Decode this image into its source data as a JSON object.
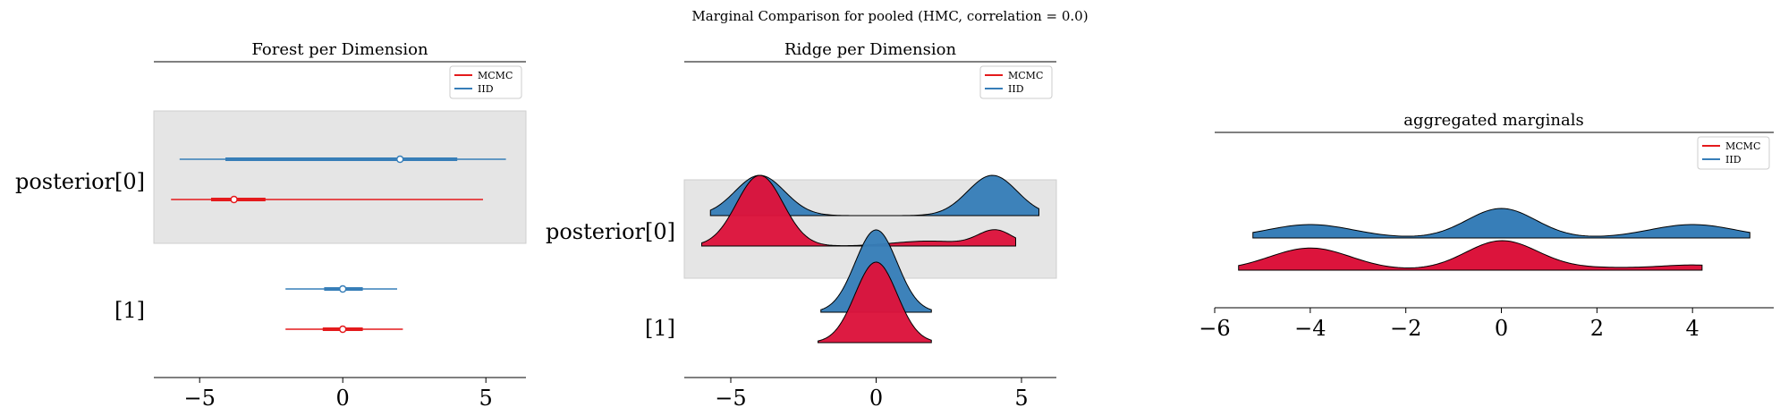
{
  "figure": {
    "suptitle": "Marginal Comparison for pooled (HMC, correlation = 0.0)"
  },
  "colors": {
    "mcmc": "#e41a1c",
    "iid": "#377eb8",
    "highlight": "#e5e5e5"
  },
  "legend": {
    "position": "top-right",
    "entries": [
      "MCMC",
      "IID"
    ]
  },
  "chart_data": [
    {
      "type": "forest",
      "title": "Forest per Dimension",
      "xticks": [
        -5,
        0,
        5
      ],
      "xlim": [
        -6.6,
        6.4
      ],
      "variables": [
        "posterior[0]",
        "[1]"
      ],
      "highlighted_variable": "posterior[0]",
      "series": [
        {
          "name": "IID",
          "color": "#377eb8",
          "intervals": [
            {
              "variable": "posterior[0]",
              "hdi_low": -5.7,
              "hdi_high": 5.7,
              "q_low": -4.1,
              "q_high": 4.0,
              "median": 2.0
            },
            {
              "variable": "[1]",
              "hdi_low": -2.0,
              "hdi_high": 1.9,
              "q_low": -0.65,
              "q_high": 0.7,
              "median": 0.0
            }
          ]
        },
        {
          "name": "MCMC",
          "color": "#e41a1c",
          "intervals": [
            {
              "variable": "posterior[0]",
              "hdi_low": -6.0,
              "hdi_high": 4.9,
              "q_low": -4.6,
              "q_high": -2.7,
              "median": -3.8
            },
            {
              "variable": "[1]",
              "hdi_low": -2.0,
              "hdi_high": 2.1,
              "q_low": -0.7,
              "q_high": 0.7,
              "median": 0.0
            }
          ]
        }
      ]
    },
    {
      "type": "ridge",
      "title": "Ridge per Dimension",
      "xticks": [
        -5,
        0,
        5
      ],
      "xlim": [
        -6.6,
        6.2
      ],
      "variables": [
        "posterior[0]",
        "[1]"
      ],
      "highlighted_variable": "posterior[0]",
      "series": [
        {
          "name": "IID",
          "color": "#377eb8",
          "ridges": [
            {
              "variable": "posterior[0]",
              "x_range": [
                -5.7,
                5.6
              ],
              "components": [
                {
                  "mu": -4.0,
                  "sigma": 0.85,
                  "w": 1.0
                },
                {
                  "mu": 4.0,
                  "sigma": 0.85,
                  "w": 1.0
                }
              ]
            },
            {
              "variable": "[1]",
              "x_range": [
                -1.9,
                1.9
              ],
              "components": [
                {
                  "mu": 0.0,
                  "sigma": 0.72,
                  "w": 1.0
                }
              ]
            }
          ]
        },
        {
          "name": "MCMC",
          "color": "#dc143c",
          "ridges": [
            {
              "variable": "posterior[0]",
              "x_range": [
                -6.0,
                4.8
              ],
              "components": [
                {
                  "mu": -4.0,
                  "sigma": 0.8,
                  "w": 1.0
                },
                {
                  "mu": 4.1,
                  "sigma": 0.6,
                  "w": 0.22
                },
                {
                  "mu": 1.8,
                  "sigma": 1.2,
                  "w": 0.07
                }
              ]
            },
            {
              "variable": "[1]",
              "x_range": [
                -2.0,
                1.9
              ],
              "components": [
                {
                  "mu": 0.0,
                  "sigma": 0.72,
                  "w": 1.0
                }
              ]
            }
          ]
        }
      ]
    },
    {
      "type": "density",
      "title": "aggregated marginals",
      "xticks": [
        -6,
        -4,
        -2,
        0,
        2,
        4
      ],
      "xlim": [
        -6.0,
        5.7
      ],
      "series": [
        {
          "name": "IID",
          "color": "#377eb8",
          "x_range": [
            -5.2,
            5.2
          ],
          "components": [
            {
              "mu": -4.0,
              "sigma": 0.9,
              "w": 1.0
            },
            {
              "mu": 0.0,
              "sigma": 0.72,
              "w": 2.2
            },
            {
              "mu": 4.0,
              "sigma": 0.9,
              "w": 1.0
            }
          ]
        },
        {
          "name": "MCMC",
          "color": "#dc143c",
          "x_range": [
            -5.5,
            4.2
          ],
          "components": [
            {
              "mu": -4.0,
              "sigma": 0.85,
              "w": 1.05
            },
            {
              "mu": 0.0,
              "sigma": 0.75,
              "w": 1.35
            },
            {
              "mu": 4.1,
              "sigma": 0.7,
              "w": 0.2
            },
            {
              "mu": 2.0,
              "sigma": 1.5,
              "w": 0.12
            }
          ]
        }
      ]
    }
  ]
}
